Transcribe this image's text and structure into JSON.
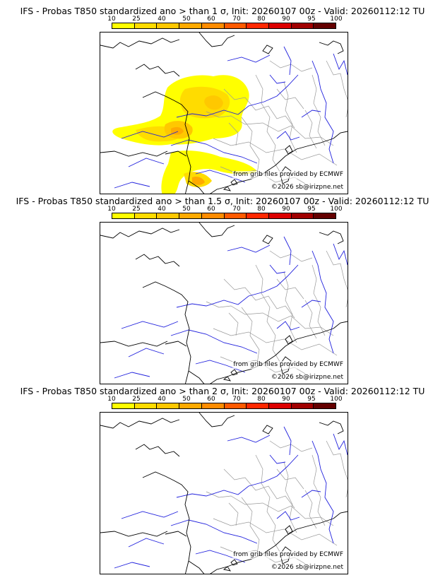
{
  "colors": {
    "scale": [
      "#ffff00",
      "#ffdc00",
      "#ffc800",
      "#ffaa00",
      "#ff8c00",
      "#ff5a00",
      "#ff2800",
      "#dc0000",
      "#a00000",
      "#640000"
    ],
    "coast": "#000000",
    "rivers": "#2020dd",
    "borders": "#999999"
  },
  "colorbar": {
    "ticks": [
      "10",
      "25",
      "40",
      "50",
      "60",
      "70",
      "80",
      "90",
      "95",
      "100"
    ]
  },
  "panels": [
    {
      "title": "IFS - Probas T850  standardized ano > than 1 σ, Init: 20260107 00z - Valid: 20260112:12 TU",
      "credit_source": "from grib files provided by ECMWF",
      "credit_copyright": "©2026 sb@irizpne.net"
    },
    {
      "title": "IFS - Probas T850  standardized ano > than 1.5 σ, Init: 20260107 00z - Valid: 20260112:12 TU",
      "credit_source": "from grib files provided by ECMWF",
      "credit_copyright": "©2026 sb@irizpne.net"
    },
    {
      "title": "IFS - Probas T850  standardized ano > than 2 σ, Init: 20260107 00z - Valid: 20260112:12 TU",
      "credit_source": "from grib files provided by ECMWF",
      "credit_copyright": "©2026 sb@irizpne.net"
    }
  ]
}
